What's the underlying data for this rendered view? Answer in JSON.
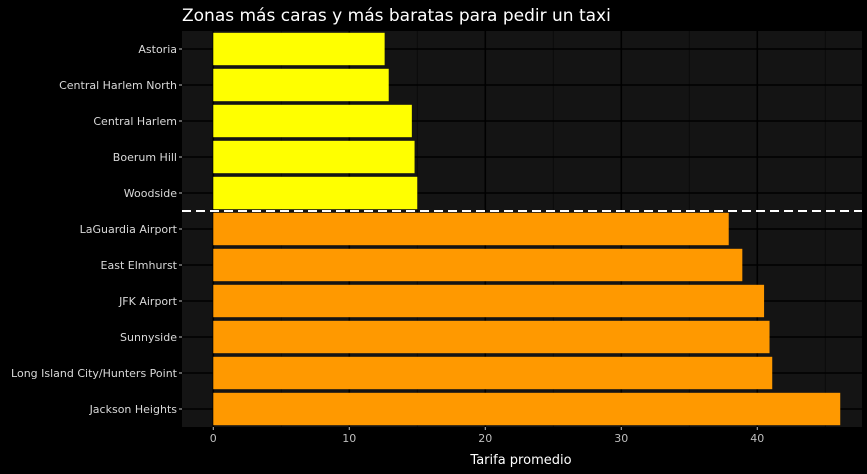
{
  "chart_data": {
    "type": "bar",
    "orientation": "horizontal",
    "title": "Zonas más caras y más baratas para pedir un taxi",
    "xlabel": "Tarifa promedio",
    "ylabel": "",
    "xlim": [
      -2.3,
      47.7
    ],
    "xticks": [
      0,
      10,
      20,
      30,
      40
    ],
    "grid": true,
    "categories": [
      "Astoria",
      "Central Harlem North",
      "Central Harlem",
      "Boerum Hill",
      "Woodside",
      "LaGuardia Airport",
      "East Elmhurst",
      "JFK Airport",
      "Sunnyside",
      "Long Island City/Hunters Point",
      "Jackson Heights"
    ],
    "values": [
      12.6,
      12.9,
      14.6,
      14.8,
      15.0,
      37.9,
      38.9,
      40.5,
      40.9,
      41.1,
      46.1
    ],
    "groups": [
      "cheap",
      "cheap",
      "cheap",
      "cheap",
      "cheap",
      "expensive",
      "expensive",
      "expensive",
      "expensive",
      "expensive",
      "expensive"
    ],
    "colors": {
      "cheap": "#ffff00",
      "expensive": "#ff9900",
      "background": "#000000",
      "panel": "#141414",
      "grid_major": "#000000",
      "grid_minor": "#0a0a0a",
      "separator": "#ffffff"
    },
    "separator_line": {
      "style": "dashed",
      "between": [
        "Woodside",
        "LaGuardia Airport"
      ]
    }
  }
}
